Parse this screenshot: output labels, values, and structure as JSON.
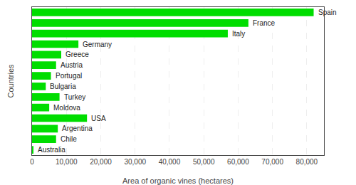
{
  "chart_data": {
    "type": "bar",
    "orientation": "horizontal",
    "xlabel": "Area of organic vines (hectares)",
    "ylabel": "Countries",
    "categories": [
      "Spain",
      "France",
      "Italy",
      "Germany",
      "Greece",
      "Austria",
      "Portugal",
      "Bulgaria",
      "Turkey",
      "Moldova",
      "USA",
      "Argentina",
      "Chile",
      "Australia"
    ],
    "values": [
      82000,
      63000,
      57000,
      13500,
      8500,
      7000,
      5500,
      4000,
      8000,
      5000,
      16000,
      7500,
      7000,
      400
    ],
    "color": "#00dd00",
    "xlim": [
      0,
      85000
    ],
    "xticks": [
      0,
      {
        "value": 10000,
        "label": "10,000"
      },
      {
        "value": 20000,
        "label": "20,000"
      },
      {
        "value": 30000,
        "label": "30,000"
      },
      {
        "value": 40000,
        "label": "40,000"
      },
      {
        "value": 50000,
        "label": "50,000"
      },
      {
        "value": 60000,
        "label": "60,000"
      },
      {
        "value": 70000,
        "label": "70,000"
      },
      {
        "value": 80000,
        "label": "80,000"
      }
    ],
    "grid": true,
    "tick_labels": "x"
  }
}
